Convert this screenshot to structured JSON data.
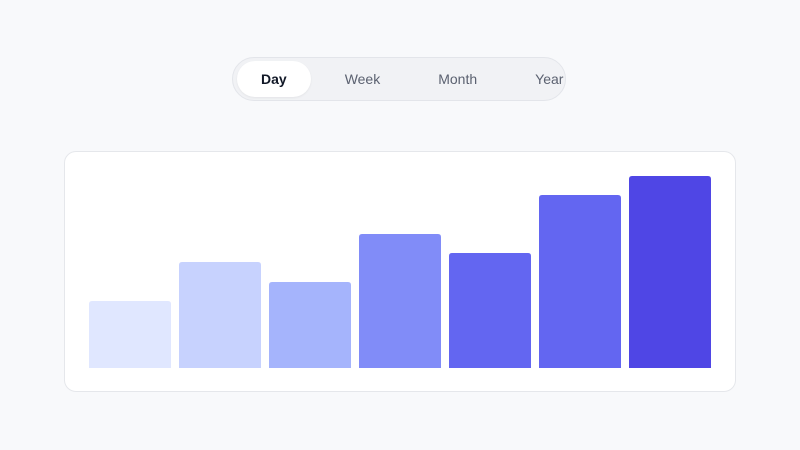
{
  "tabs": {
    "items": [
      "Day",
      "Week",
      "Month",
      "Year"
    ],
    "active": 0
  },
  "chart_data": {
    "type": "bar",
    "values": [
      67,
      106,
      86,
      134,
      115,
      173,
      192
    ],
    "colors": [
      "#e0e7ff",
      "#c7d2fe",
      "#a5b4fc",
      "#818cf8",
      "#6366f1",
      "#6366f1",
      "#4f46e5"
    ]
  }
}
